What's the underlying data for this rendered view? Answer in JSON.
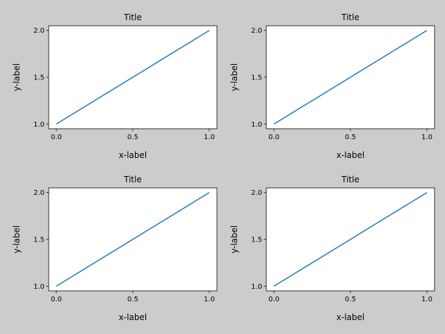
{
  "figure": {
    "background": "#cccccc",
    "line_color": "#1f77b4"
  },
  "chart_data": [
    {
      "type": "line",
      "title": "Title",
      "xlabel": "x-label",
      "ylabel": "y-label",
      "x": [
        0,
        1
      ],
      "y": [
        1,
        2
      ],
      "xlim": [
        -0.05,
        1.05
      ],
      "ylim": [
        0.95,
        2.05
      ],
      "xticks": [
        "0.0",
        "0.5",
        "1.0"
      ],
      "yticks": [
        "1.0",
        "1.5",
        "2.0"
      ],
      "grid": false
    },
    {
      "type": "line",
      "title": "Title",
      "xlabel": "x-label",
      "ylabel": "y-label",
      "x": [
        0,
        1
      ],
      "y": [
        1,
        2
      ],
      "xlim": [
        -0.05,
        1.05
      ],
      "ylim": [
        0.95,
        2.05
      ],
      "xticks": [
        "0.0",
        "0.5",
        "1.0"
      ],
      "yticks": [
        "1.0",
        "1.5",
        "2.0"
      ],
      "grid": false
    },
    {
      "type": "line",
      "title": "Title",
      "xlabel": "x-label",
      "ylabel": "y-label",
      "x": [
        0,
        1
      ],
      "y": [
        1,
        2
      ],
      "xlim": [
        -0.05,
        1.05
      ],
      "ylim": [
        0.95,
        2.05
      ],
      "xticks": [
        "0.0",
        "0.5",
        "1.0"
      ],
      "yticks": [
        "1.0",
        "1.5",
        "2.0"
      ],
      "grid": false
    },
    {
      "type": "line",
      "title": "Title",
      "xlabel": "x-label",
      "ylabel": "y-label",
      "x": [
        0,
        1
      ],
      "y": [
        1,
        2
      ],
      "xlim": [
        -0.05,
        1.05
      ],
      "ylim": [
        0.95,
        2.05
      ],
      "xticks": [
        "0.0",
        "0.5",
        "1.0"
      ],
      "yticks": [
        "1.0",
        "1.5",
        "2.0"
      ],
      "grid": false
    }
  ]
}
